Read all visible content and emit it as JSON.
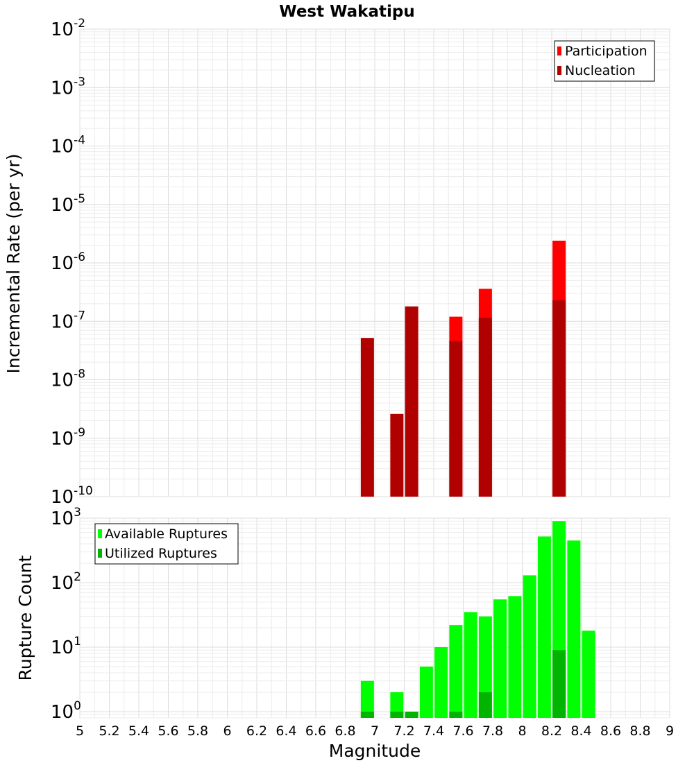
{
  "chart_data": [
    {
      "type": "bar",
      "title": "West Wakatipu",
      "xlabel": "",
      "ylabel": "Incremental Rate (per yr)",
      "xlim": [
        5,
        9
      ],
      "ylim": [
        1e-10,
        0.01
      ],
      "yscale": "log",
      "ytick_exponents": [
        "-10",
        "-9",
        "-8",
        "-7",
        "-6",
        "-5",
        "-4",
        "-3",
        "-2"
      ],
      "grid": true,
      "legend": "top-right",
      "series": [
        {
          "name": "Participation",
          "color": "#ff0000",
          "x": [
            7.55,
            7.75,
            8.25
          ],
          "values": [
            1.2e-07,
            3.6e-07,
            2.4e-06
          ]
        },
        {
          "name": "Nucleation",
          "color": "#b00000",
          "x": [
            6.95,
            7.15,
            7.25,
            7.55,
            7.75,
            8.25
          ],
          "values": [
            5.2e-08,
            2.6e-09,
            1.8e-07,
            4.6e-08,
            1.15e-07,
            2.3e-07
          ]
        }
      ]
    },
    {
      "type": "bar",
      "title": "",
      "xlabel": "Magnitude",
      "ylabel": "Rupture Count",
      "xlim": [
        5,
        9
      ],
      "ylim": [
        0.8,
        1000
      ],
      "yscale": "log",
      "ytick_exponents": [
        "0",
        "1",
        "2",
        "3"
      ],
      "xticks": [
        "5",
        "5.2",
        "5.4",
        "5.6",
        "5.8",
        "6",
        "6.2",
        "6.4",
        "6.6",
        "6.8",
        "7",
        "7.2",
        "7.4",
        "7.6",
        "7.8",
        "8",
        "8.2",
        "8.4",
        "8.6",
        "8.8",
        "9"
      ],
      "grid": true,
      "legend": "top-left",
      "series": [
        {
          "name": "Available Ruptures",
          "color": "#00ff00",
          "x": [
            6.95,
            7.15,
            7.35,
            7.45,
            7.55,
            7.65,
            7.75,
            7.85,
            7.95,
            8.05,
            8.15,
            8.25,
            8.35,
            8.45
          ],
          "values": [
            3,
            2,
            5,
            10,
            22,
            35,
            30,
            55,
            62,
            130,
            520,
            900,
            450,
            18
          ]
        },
        {
          "name": "Utilized Ruptures",
          "color": "#00b400",
          "x": [
            6.95,
            7.15,
            7.25,
            7.55,
            7.75,
            8.25
          ],
          "values": [
            1,
            1,
            1,
            1,
            2,
            9
          ]
        }
      ]
    }
  ]
}
